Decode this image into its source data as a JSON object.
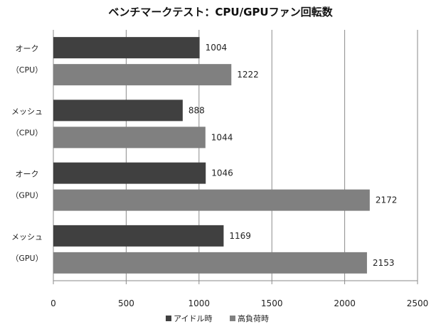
{
  "chart_data": {
    "type": "bar",
    "orientation": "horizontal",
    "title": "ベンチマークテスト：CPU/GPUファン回転数",
    "categories": [
      {
        "line1": "オーク",
        "line2": "（CPU）"
      },
      {
        "line1": "メッシュ",
        "line2": "（CPU）"
      },
      {
        "line1": "オーク",
        "line2": "（GPU）"
      },
      {
        "line1": "メッシュ",
        "line2": "（GPU）"
      }
    ],
    "series": [
      {
        "name": "アイドル時",
        "color": "#404040",
        "values": [
          1004,
          888,
          1046,
          1169
        ],
        "labels": [
          "1004",
          "888",
          "1046",
          "1169"
        ]
      },
      {
        "name": "高負荷時",
        "color": "#808080",
        "values": [
          1222,
          1044,
          2172,
          2153
        ],
        "labels": [
          "1222",
          "1044",
          "2172",
          "2153"
        ]
      }
    ],
    "xlim": [
      0,
      2500
    ],
    "xticks": [
      "0",
      "500",
      "1000",
      "1500",
      "2000",
      "2500"
    ],
    "grid": true,
    "legend_position": "bottom"
  }
}
